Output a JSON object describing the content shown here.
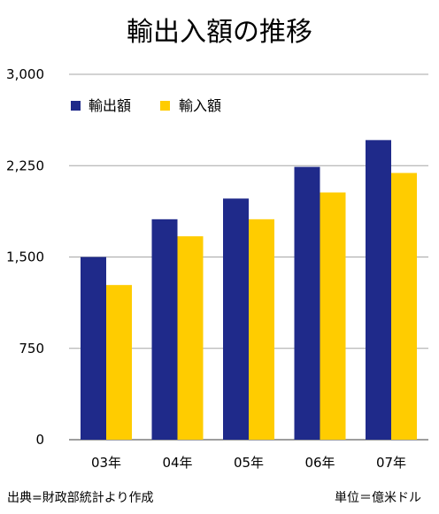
{
  "chart_data": {
    "type": "bar",
    "title": "輸出入額の推移",
    "categories": [
      "03年",
      "04年",
      "05年",
      "06年",
      "07年"
    ],
    "series": [
      {
        "name": "輸出額",
        "color": "#1f2a8a",
        "values": [
          1500,
          1810,
          1980,
          2240,
          2460
        ]
      },
      {
        "name": "輸入額",
        "color": "#ffcc00",
        "values": [
          1270,
          1670,
          1810,
          2030,
          2190
        ]
      }
    ],
    "ylim": [
      0,
      3000
    ],
    "yticks": [
      0,
      750,
      1500,
      2250,
      3000
    ],
    "ytick_labels": [
      "0",
      "750",
      "1,500",
      "2,250",
      "3,000"
    ],
    "grid": true,
    "legend_position": "top-left",
    "xlabel": "",
    "ylabel": ""
  },
  "footer": {
    "source": "出典=財政部統計より作成",
    "unit": "単位＝億米ドル"
  },
  "colors": {
    "grid": "#a6a6a6",
    "baseline": "#7f7f7f"
  }
}
